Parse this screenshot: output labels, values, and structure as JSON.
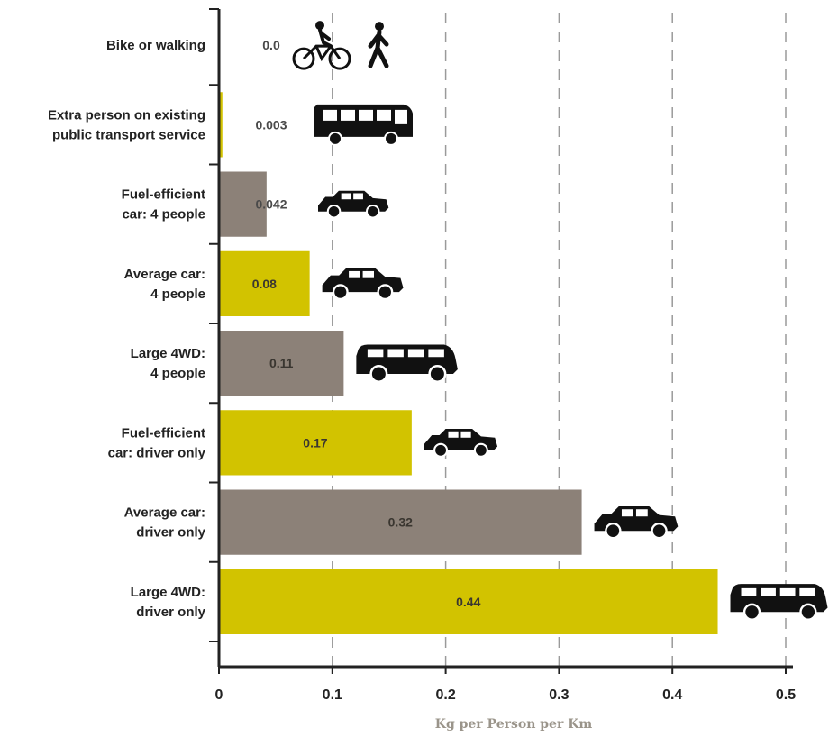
{
  "chart_data": {
    "type": "bar",
    "orientation": "horizontal",
    "categories": [
      [
        "Bike or walking"
      ],
      [
        "Extra person on existing",
        "public transport service"
      ],
      [
        "Fuel-efficient",
        "car: 4 people"
      ],
      [
        "Average car:",
        "4 people"
      ],
      [
        "Large 4WD:",
        "4 people"
      ],
      [
        "Fuel-efficient",
        "car: driver only"
      ],
      [
        "Average car:",
        "driver only"
      ],
      [
        "Large 4WD:",
        "driver only"
      ]
    ],
    "values": [
      0.0,
      0.003,
      0.042,
      0.08,
      0.11,
      0.17,
      0.32,
      0.44
    ],
    "value_labels": [
      "0.0",
      "0.003",
      "0.042",
      "0.08",
      "0.11",
      "0.17",
      "0.32",
      "0.44"
    ],
    "icons": [
      "bike-and-walking-icon",
      "bus-icon",
      "car-icon",
      "car-icon",
      "suv-icon",
      "car-icon",
      "car-icon",
      "suv-icon"
    ],
    "bar_colors": [
      "#d2c300",
      "#d2c300",
      "#8c8178",
      "#d2c300",
      "#8c8178",
      "#d2c300",
      "#8c8178",
      "#d2c300"
    ],
    "xlim": [
      0,
      0.5
    ],
    "xticks": [
      "0",
      "0.1",
      "0.2",
      "0.3",
      "0.4",
      "0.5"
    ],
    "xlabel": "Kg per Person per Km",
    "ylabel": "",
    "title": "",
    "grid": "vertical dashed",
    "legend": "none"
  }
}
